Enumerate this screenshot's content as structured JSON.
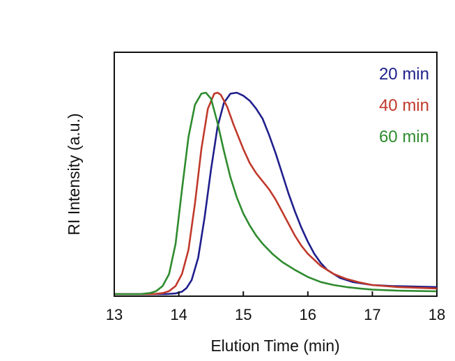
{
  "chart_data": {
    "type": "line",
    "title": "",
    "xlabel": "Elution Time (min)",
    "ylabel": "RI Intensity (a.u.)",
    "xlim": [
      13,
      18
    ],
    "ylim": [
      0,
      1.1
    ],
    "x_ticks": [
      "13",
      "14",
      "15",
      "16",
      "17",
      "18"
    ],
    "y_ticks_shown": false,
    "grid": false,
    "legend_position": "top-right",
    "series": [
      {
        "name": "20 min",
        "color": "#1f1f8c",
        "x": [
          13.0,
          13.8,
          13.95,
          14.05,
          14.12,
          14.2,
          14.3,
          14.4,
          14.5,
          14.6,
          14.7,
          14.8,
          14.9,
          15.0,
          15.1,
          15.2,
          15.3,
          15.4,
          15.5,
          15.6,
          15.7,
          15.8,
          15.9,
          16.0,
          16.1,
          16.2,
          16.3,
          16.5,
          16.7,
          17.0,
          17.3,
          17.6,
          18.0
        ],
        "values": [
          0.0,
          0.0,
          0.003,
          0.012,
          0.03,
          0.07,
          0.18,
          0.38,
          0.62,
          0.83,
          0.95,
          0.995,
          1.0,
          0.985,
          0.96,
          0.92,
          0.87,
          0.79,
          0.7,
          0.6,
          0.5,
          0.41,
          0.33,
          0.26,
          0.2,
          0.155,
          0.12,
          0.08,
          0.06,
          0.045,
          0.04,
          0.038,
          0.035
        ]
      },
      {
        "name": "40 min",
        "color": "#c0392b",
        "x": [
          13.0,
          13.6,
          13.75,
          13.85,
          13.95,
          14.05,
          14.15,
          14.25,
          14.35,
          14.45,
          14.55,
          14.6,
          14.65,
          14.75,
          14.85,
          15.0,
          15.1,
          15.2,
          15.3,
          15.4,
          15.5,
          15.6,
          15.7,
          15.8,
          15.9,
          16.0,
          16.2,
          16.4,
          16.6,
          16.8,
          17.0,
          17.4,
          18.0
        ],
        "values": [
          0.0,
          0.0,
          0.005,
          0.015,
          0.04,
          0.1,
          0.22,
          0.45,
          0.72,
          0.92,
          0.995,
          1.0,
          0.99,
          0.93,
          0.84,
          0.72,
          0.65,
          0.6,
          0.56,
          0.52,
          0.47,
          0.41,
          0.35,
          0.29,
          0.24,
          0.2,
          0.14,
          0.1,
          0.075,
          0.058,
          0.045,
          0.035,
          0.028
        ]
      },
      {
        "name": "60 min",
        "color": "#2e8b2e",
        "x": [
          13.0,
          13.4,
          13.55,
          13.65,
          13.75,
          13.85,
          13.95,
          14.05,
          14.15,
          14.25,
          14.35,
          14.42,
          14.5,
          14.6,
          14.7,
          14.8,
          14.9,
          15.0,
          15.1,
          15.2,
          15.3,
          15.45,
          15.6,
          15.8,
          16.0,
          16.2,
          16.4,
          16.6,
          16.8,
          17.0,
          17.4,
          18.0
        ],
        "values": [
          0.0,
          0.0,
          0.005,
          0.015,
          0.04,
          0.1,
          0.25,
          0.52,
          0.78,
          0.94,
          0.995,
          1.0,
          0.97,
          0.85,
          0.71,
          0.58,
          0.48,
          0.4,
          0.34,
          0.29,
          0.25,
          0.2,
          0.16,
          0.12,
          0.085,
          0.06,
          0.045,
          0.035,
          0.028,
          0.022,
          0.017,
          0.014
        ]
      }
    ]
  }
}
